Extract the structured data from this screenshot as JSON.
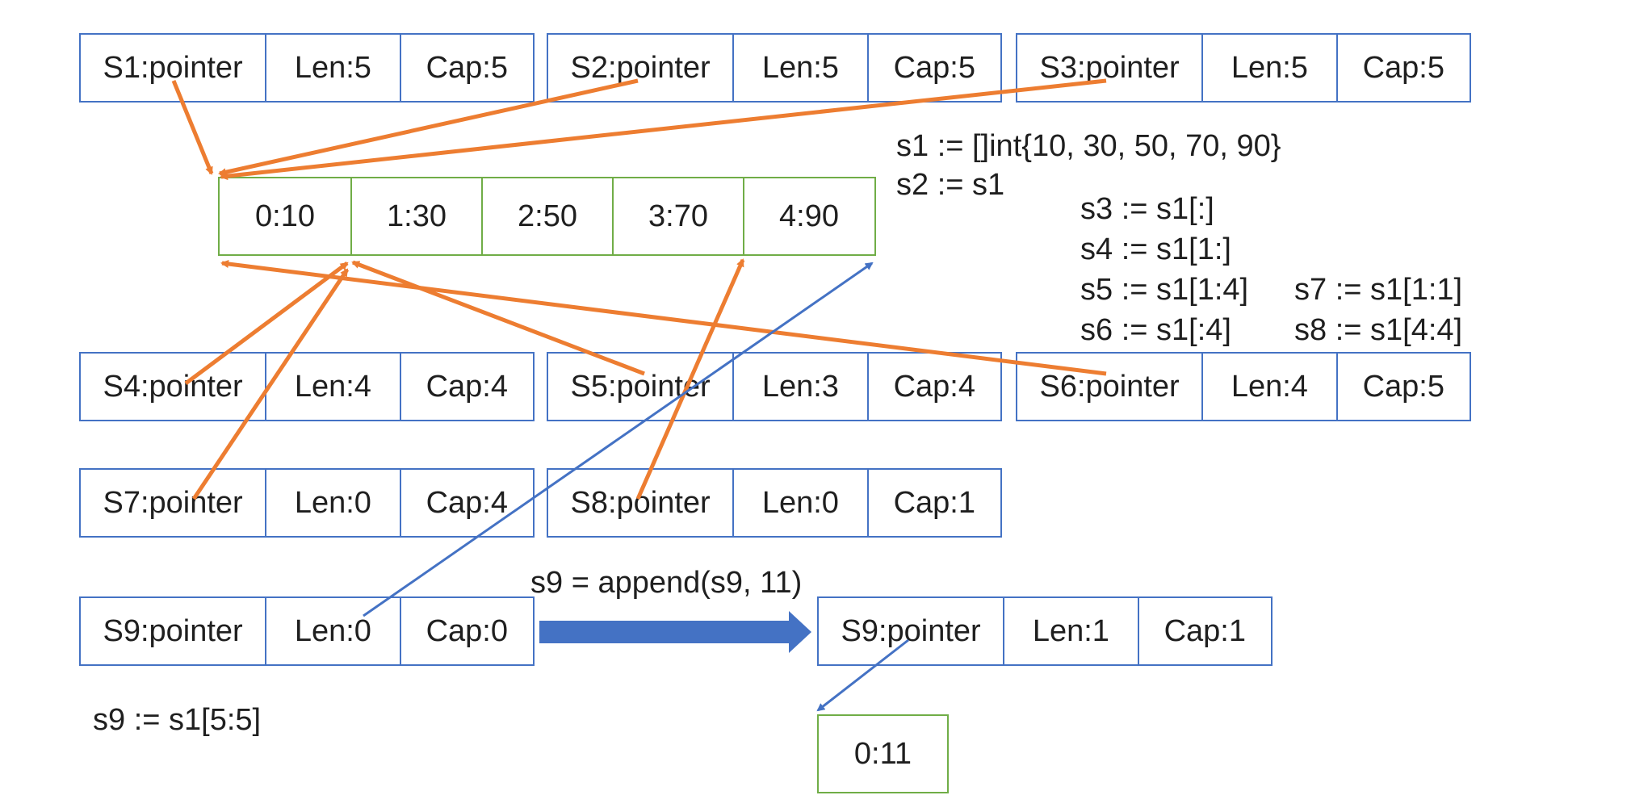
{
  "colors": {
    "header_border": "#4472c4",
    "array_border": "#70ad47",
    "arrow_shared": "#ed7d31",
    "arrow_new": "#4472c4"
  },
  "headers": {
    "s1": {
      "ptr": "S1:pointer",
      "len": "Len:5",
      "cap": "Cap:5"
    },
    "s2": {
      "ptr": "S2:pointer",
      "len": "Len:5",
      "cap": "Cap:5"
    },
    "s3": {
      "ptr": "S3:pointer",
      "len": "Len:5",
      "cap": "Cap:5"
    },
    "s4": {
      "ptr": "S4:pointer",
      "len": "Len:4",
      "cap": "Cap:4"
    },
    "s5": {
      "ptr": "S5:pointer",
      "len": "Len:3",
      "cap": "Cap:4"
    },
    "s6": {
      "ptr": "S6:pointer",
      "len": "Len:4",
      "cap": "Cap:5"
    },
    "s7": {
      "ptr": "S7:pointer",
      "len": "Len:0",
      "cap": "Cap:4"
    },
    "s8": {
      "ptr": "S8:pointer",
      "len": "Len:0",
      "cap": "Cap:1"
    },
    "s9": {
      "ptr": "S9:pointer",
      "len": "Len:0",
      "cap": "Cap:0"
    },
    "s9_new": {
      "ptr": "S9:pointer",
      "len": "Len:1",
      "cap": "Cap:1"
    }
  },
  "backing_array": [
    "0:10",
    "1:30",
    "2:50",
    "3:70",
    "4:90"
  ],
  "new_array": [
    "0:11"
  ],
  "code": {
    "s1": "s1 := []int{10, 30, 50, 70, 90}",
    "s2": "s2 := s1",
    "s3": "s3 := s1[:]",
    "s4": "s4 := s1[1:]",
    "s5": "s5 := s1[1:4]",
    "s6": "s6 := s1[:4]",
    "s7": "s7 := s1[1:1]",
    "s8": "s8 := s1[4:4]",
    "s9": "s9 := s1[5:5]",
    "append": "s9 = append(s9, 11)"
  }
}
